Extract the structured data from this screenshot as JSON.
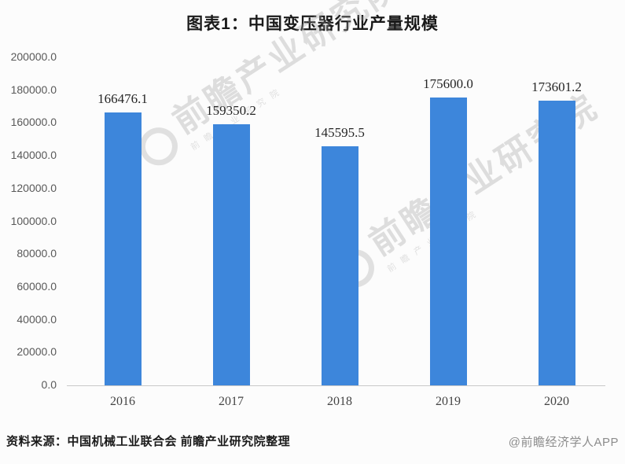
{
  "title": "图表1：中国变压器行业产量规模",
  "watermark": {
    "text": "前瞻产业研究院"
  },
  "footer": {
    "source": "资料来源：中国机械工业联合会 前瞻产业研究院整理",
    "credit": "@前瞻经济学人APP"
  },
  "colors": {
    "bar": "#3d86db",
    "baseline": "#c9c9c9",
    "background": "#fcfcfc",
    "title_text": "#1a1a1a",
    "axis_text": "#595959",
    "data_label_text": "#262626",
    "credit_text": "#8c8c8c"
  },
  "chart_data": {
    "type": "bar",
    "title": "图表1：中国变压器行业产量规模",
    "categories": [
      "2016",
      "2017",
      "2018",
      "2019",
      "2020"
    ],
    "values": [
      166476.1,
      159350.2,
      145595.5,
      175600.0,
      173601.2
    ],
    "value_labels": [
      "166476.1",
      "159350.2",
      "145595.5",
      "175600.0",
      "173601.2"
    ],
    "xlabel": "",
    "ylabel": "",
    "ylim": [
      0,
      200000
    ],
    "ytick_step": 20000,
    "ytick_labels": [
      "0.0",
      "20000.0",
      "40000.0",
      "60000.0",
      "80000.0",
      "100000.0",
      "120000.0",
      "140000.0",
      "160000.0",
      "180000.0",
      "200000.0"
    ],
    "grid": false,
    "legend": null,
    "bar_color": "#3d86db"
  }
}
